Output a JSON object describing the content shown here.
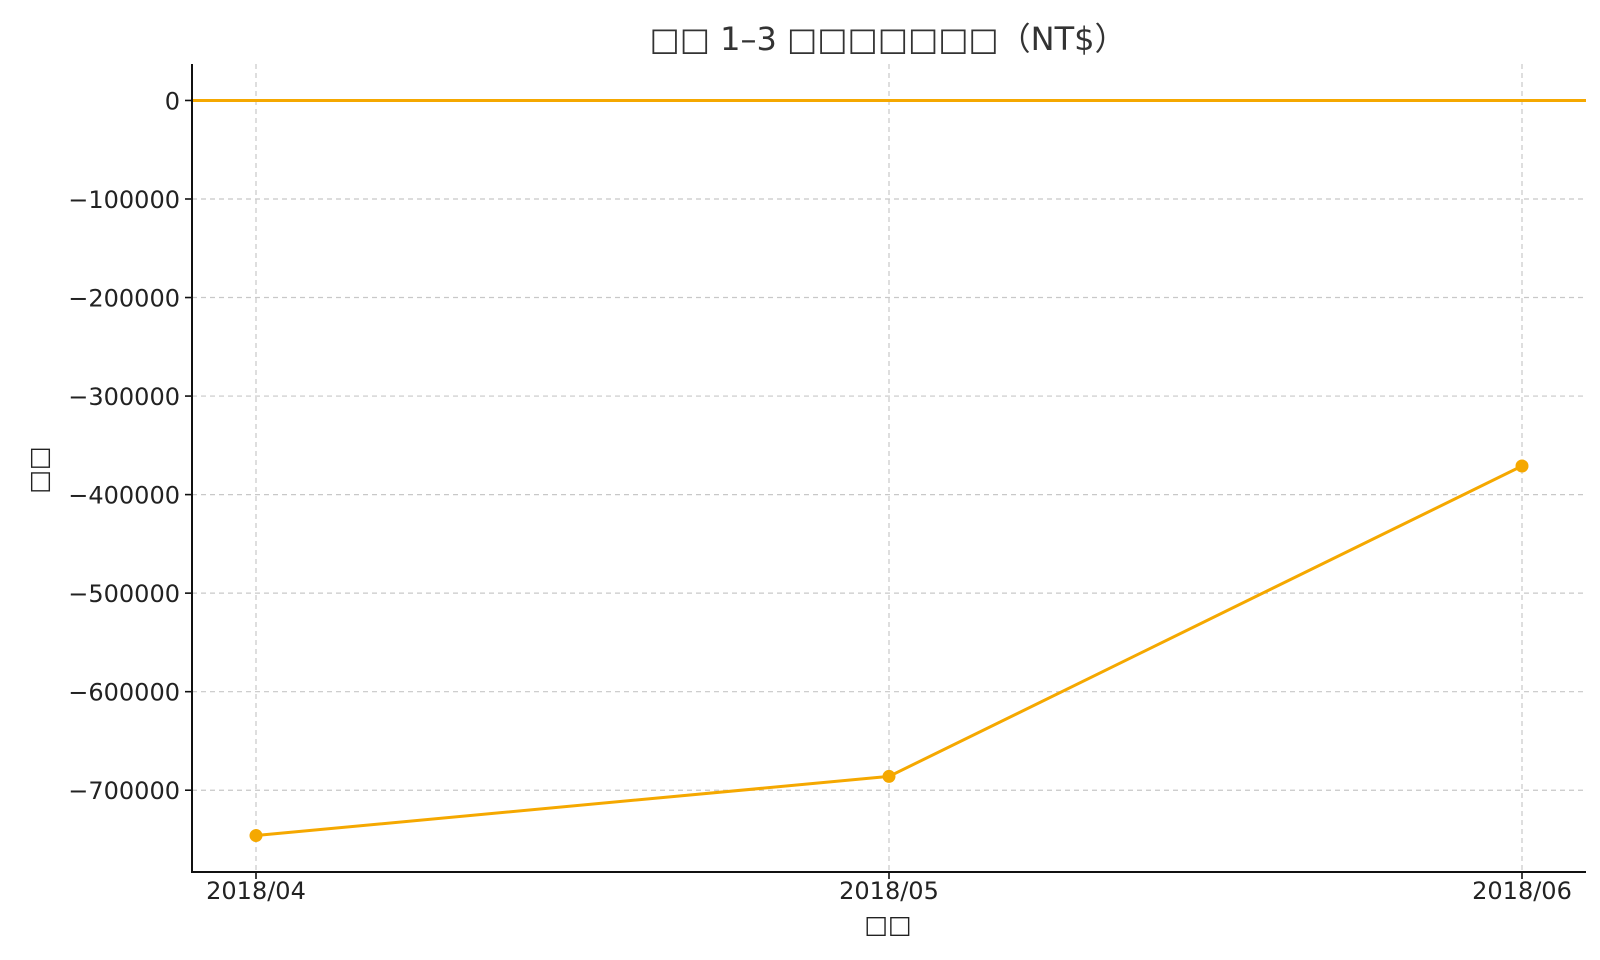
{
  "chart_data": {
    "type": "line",
    "title": "□□ 1–3 □□□□□□□（NT$）",
    "xlabel": "□□",
    "ylabel": "□□",
    "categories": [
      "2018/04",
      "2018/05",
      "2018/06"
    ],
    "series": [
      {
        "values": [
          -746000,
          -686000,
          -371000
        ],
        "color": "#F5A800"
      }
    ],
    "reference_line": {
      "y": 0,
      "color": "#F5A800"
    },
    "yticks": [
      0,
      -100000,
      -200000,
      -300000,
      -400000,
      -500000,
      -600000,
      -700000
    ],
    "ytick_labels": [
      "0",
      "−100000",
      "−200000",
      "−300000",
      "−400000",
      "−500000",
      "−600000",
      "−700000"
    ],
    "ylim": [
      -783000,
      37000
    ],
    "grid": true
  }
}
